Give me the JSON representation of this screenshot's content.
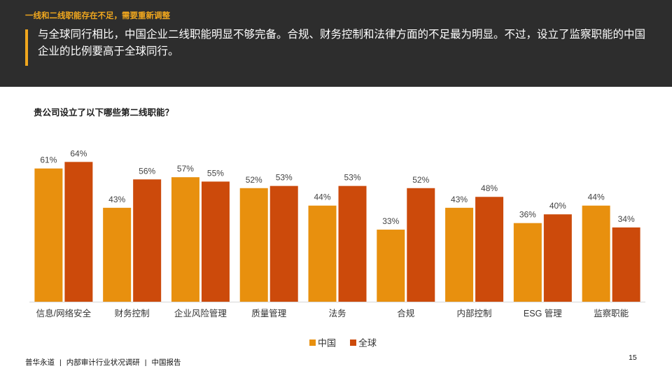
{
  "header": {
    "kicker": "一线和二线职能存在不足，需要重新调整",
    "headline": "与全球同行相比，中国企业二线职能明显不够完备。合规、财务控制和法律方面的不足最为明显。不过，设立了监察职能的中国企业的比例要高于全球同行。"
  },
  "chart_data": {
    "type": "bar",
    "title": "贵公司设立了以下哪些第二线职能？",
    "categories": [
      "信息/网络安全",
      "财务控制",
      "企业风险管理",
      "质量管理",
      "法务",
      "合规",
      "内部控制",
      "ESG 管理",
      "监察职能"
    ],
    "series": [
      {
        "name": "中国",
        "values": [
          61,
          43,
          57,
          52,
          44,
          33,
          43,
          36,
          44
        ]
      },
      {
        "name": "全球",
        "values": [
          64,
          56,
          55,
          53,
          53,
          52,
          48,
          40,
          34
        ]
      }
    ],
    "value_suffix": "%",
    "ylim": [
      0,
      70
    ],
    "grid": false,
    "legend_position": "bottom-center",
    "colors": [
      "#e8900e",
      "#cc4a0b"
    ]
  },
  "footer": {
    "brand": "普华永道",
    "report": "内部审计行业状况调研",
    "edition": "中国报告",
    "page": "15"
  }
}
